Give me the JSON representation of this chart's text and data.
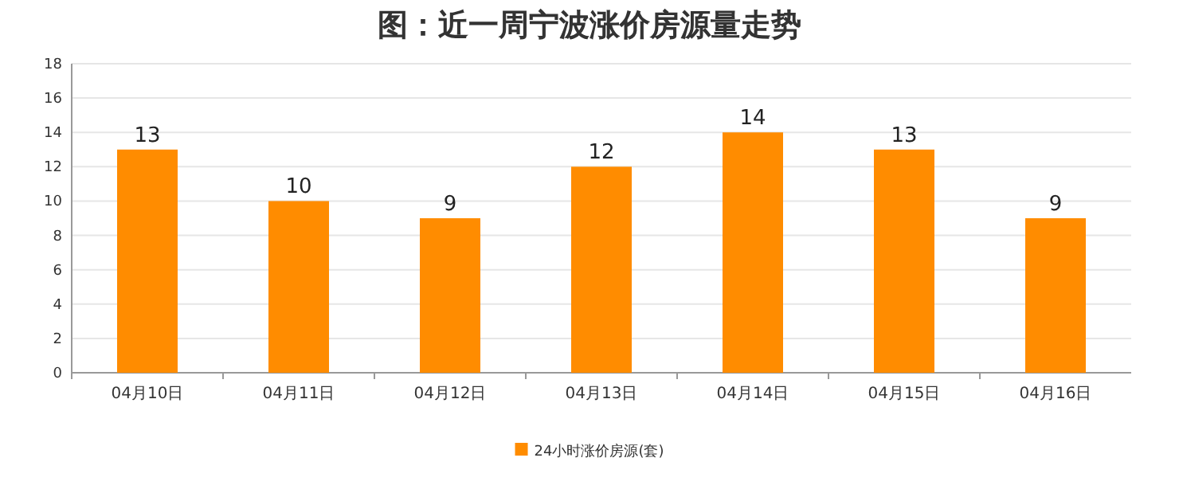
{
  "chart_data": {
    "type": "bar",
    "title": "图：近一周宁波涨价房源量走势",
    "categories": [
      "04月10日",
      "04月11日",
      "04月12日",
      "04月13日",
      "04月14日",
      "04月15日",
      "04月16日"
    ],
    "series": [
      {
        "name": "24小时涨价房源(套)",
        "color": "#ff8c00",
        "values": [
          13,
          10,
          9,
          12,
          14,
          13,
          9
        ]
      }
    ],
    "ylim": [
      0,
      18
    ],
    "yticks": [
      0,
      2,
      4,
      6,
      8,
      10,
      12,
      14,
      16,
      18
    ],
    "grid": "y",
    "legend": "bottom",
    "data_labels": true
  }
}
